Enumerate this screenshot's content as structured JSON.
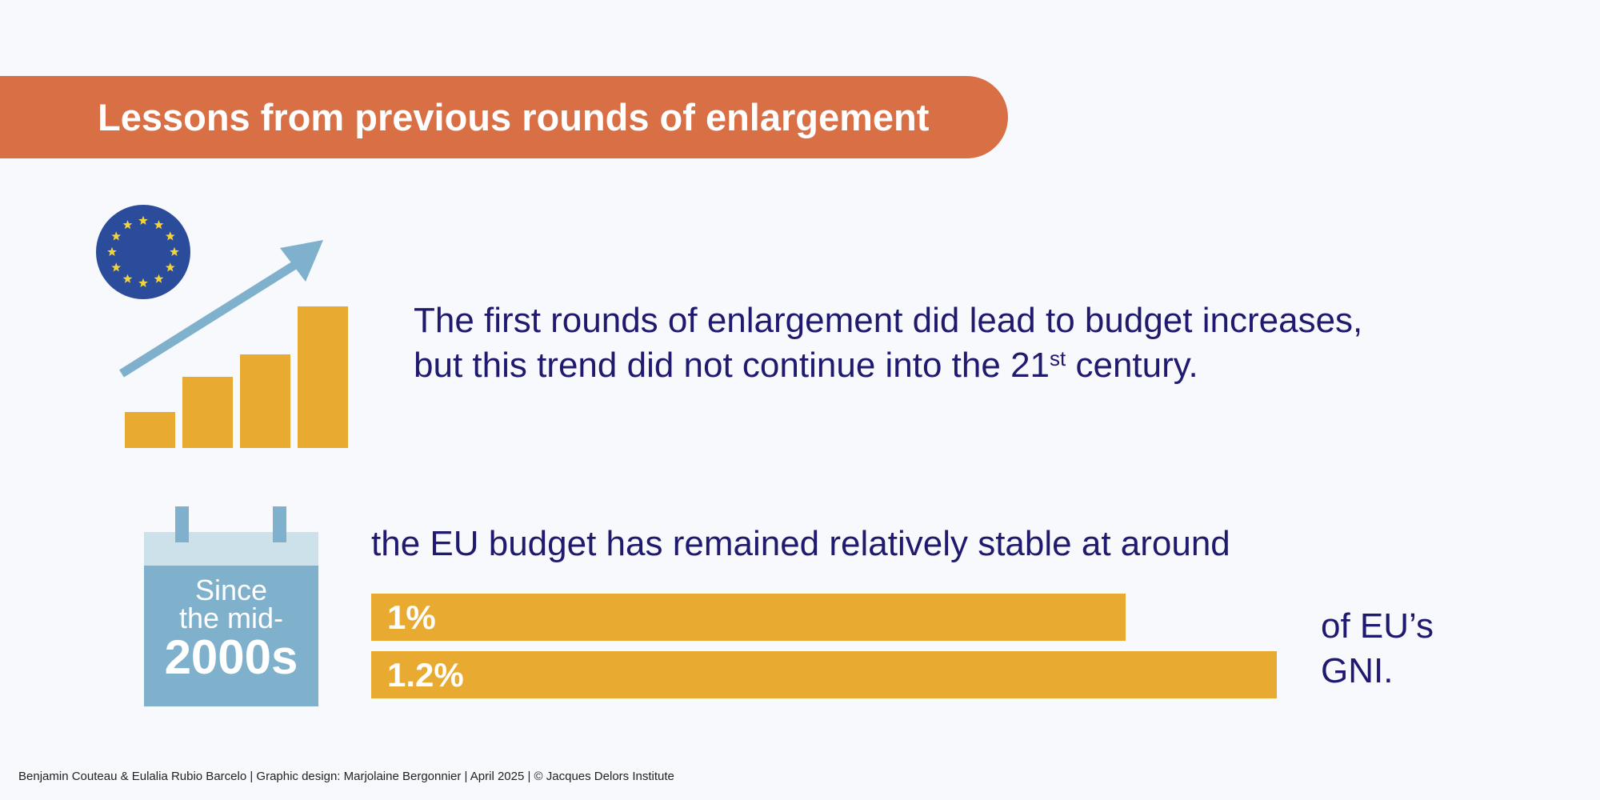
{
  "banner": {
    "title": "Lessons from previous rounds of enlargement"
  },
  "statement": {
    "line1": "The first rounds of enlargement did lead to budget increases,",
    "line2_before": "but this trend did not continue into the 21",
    "line2_sup": "st",
    "line2_after": " century."
  },
  "calendar": {
    "line1": "Since",
    "line2": "the mid-",
    "line3": "2000s"
  },
  "budget": {
    "text": "the EU budget has remained relatively stable at around",
    "suffix_line1": "of EU’s",
    "suffix_line2": "GNI."
  },
  "bars": [
    {
      "label": "1%",
      "value": 1.0
    },
    {
      "label": "1.2%",
      "value": 1.2
    }
  ],
  "icons": {
    "growth": "bar-chart-growth-with-eu-flag-and-arrow-icon",
    "calendar": "calendar-icon"
  },
  "colors": {
    "banner": "#d86f45",
    "text": "#1f1a6e",
    "bar": "#e8aa31",
    "light_blue": "#7fb0cc",
    "eu_blue": "#2b4c9b",
    "eu_star": "#f2d43a"
  },
  "footer": {
    "text": "Benjamin Couteau & Eulalia Rubio Barcelo | Graphic design: Marjolaine Bergonnier | April 2025 | © Jacques Delors Institute"
  }
}
